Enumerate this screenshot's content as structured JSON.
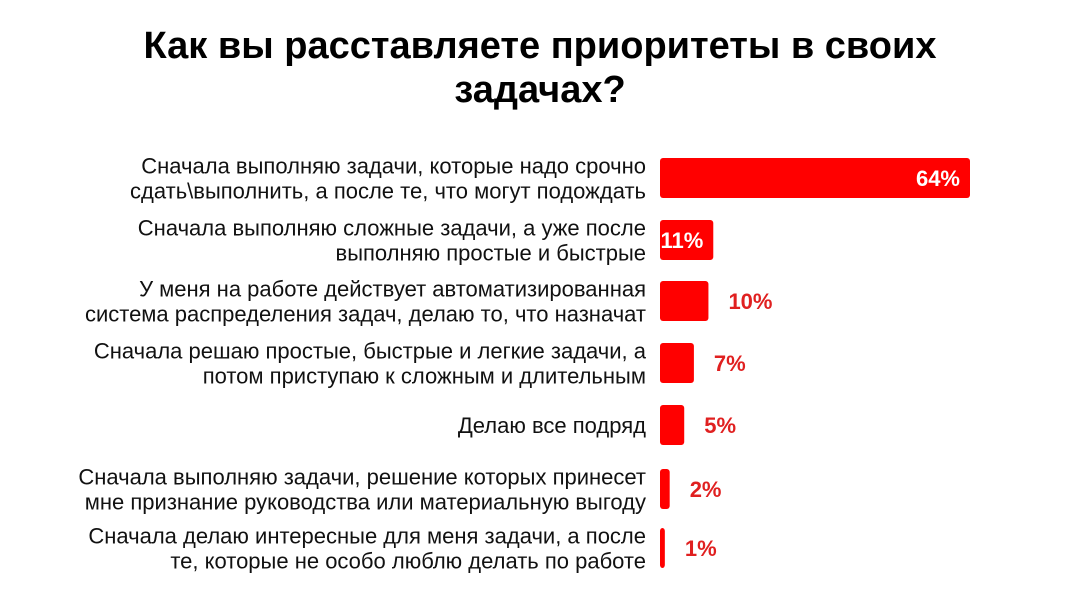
{
  "title_lines": [
    "Как вы расставляете приоритеты в своих",
    "задачах?"
  ],
  "colors": {
    "bar": "#ff0000",
    "value_outside": "#e02020",
    "value_inside": "#ffffff"
  },
  "chart_data": {
    "type": "bar",
    "orientation": "horizontal",
    "title": "Как вы расставляете приоритеты в своих задачах?",
    "categories": [
      [
        "Сначала выполняю задачи, которые надо срочно",
        "сдать\\выполнить, а после те, что могут подождать"
      ],
      [
        "Сначала выполняю сложные задачи, а уже после",
        "выполняю простые и быстрые"
      ],
      [
        "У меня на работе действует автоматизированная",
        "система распределения задач, делаю то, что назначат"
      ],
      [
        "Сначала решаю простые, быстрые и легкие задачи, а",
        "потом приступаю к сложным и длительным"
      ],
      [
        "Делаю все подряд"
      ],
      [
        "Сначала выполняю задачи, решение которых принесет",
        "мне признание руководства или материальную выгоду"
      ],
      [
        "Сначала делаю интересные для меня задачи, а после",
        "те, которые не особо люблю делать по работе"
      ]
    ],
    "values": [
      64,
      11,
      10,
      7,
      5,
      2,
      1
    ],
    "value_labels": [
      "64%",
      "11%",
      "10%",
      "7%",
      "5%",
      "2%",
      "1%"
    ],
    "unit": "%",
    "xlim": [
      0,
      64
    ],
    "grid": false,
    "legend": "none"
  }
}
